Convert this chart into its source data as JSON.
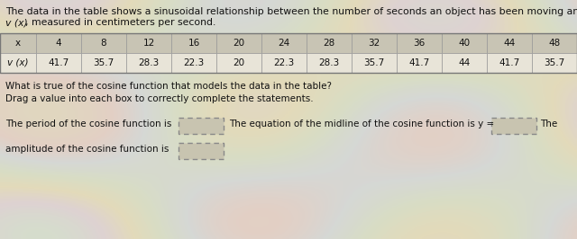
{
  "title_line1": "The data in the table shows a sinusoidal relationship between the number of seconds an object has been moving and its velocity",
  "title_line2_normal": "v ",
  "title_line2_italic": "(x)",
  "title_line2_rest": ", measured in centimeters per second.",
  "x_label": "x",
  "vx_label_italic": "v (x)",
  "x_values": [
    "4",
    "8",
    "12",
    "16",
    "20",
    "24",
    "28",
    "32",
    "36",
    "40",
    "44",
    "48"
  ],
  "vx_values": [
    "41.7",
    "35.7",
    "28.3",
    "22.3",
    "20",
    "22.3",
    "28.3",
    "35.7",
    "41.7",
    "44",
    "41.7",
    "35.7"
  ],
  "question": "What is true of the cosine function that models the data in the table?",
  "instruction": "Drag a value into each box to correctly complete the statements.",
  "stmt1_pre": "The period of the cosine function is",
  "stmt2_pre": "The equation of the midline of the cosine function is y =",
  "stmt2_post": "The",
  "stmt3_pre": "amplitude of the cosine function is",
  "bg_color": "#ddd8c8",
  "text_color": "#111111",
  "table_row1_color": "#c8c4b4",
  "table_row2_color": "#e8e4d8",
  "table_border_color": "#999999",
  "box_color": "#c8c4b0",
  "font_size": 7.5,
  "title_font_size": 7.8
}
